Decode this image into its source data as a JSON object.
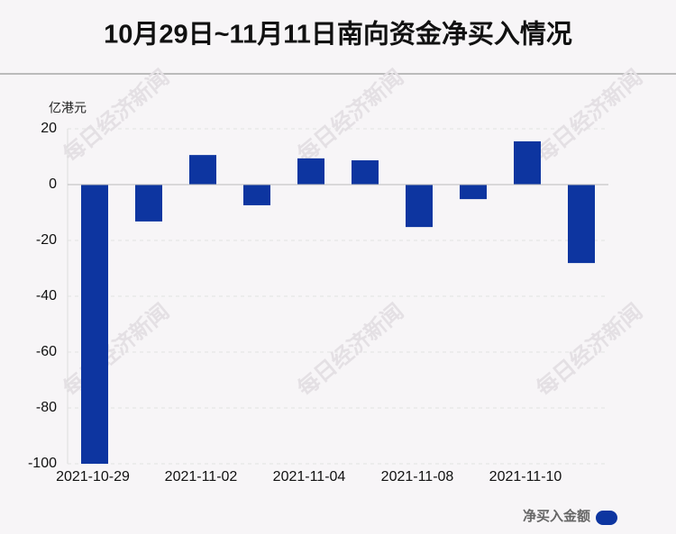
{
  "chart_data": {
    "type": "bar",
    "title": "10月29日~11月11日南向资金净买入情况",
    "y_unit": "亿港元",
    "watermark": "每日经济新闻",
    "categories": [
      "2021-10-29",
      null,
      "2021-11-02",
      null,
      "2021-11-04",
      null,
      "2021-11-08",
      null,
      "2021-11-10",
      null
    ],
    "series": [
      {
        "name": "净买入金额",
        "color": "#0d35a0",
        "values": [
          -100,
          -13.2,
          10.6,
          -7.4,
          9.4,
          8.7,
          -15.2,
          -5.2,
          15.5,
          -28.1
        ]
      }
    ],
    "ylim": [
      -100,
      20
    ],
    "yticks": [
      20,
      0,
      -20,
      -40,
      -60,
      -80,
      -100
    ],
    "grid": true,
    "legend": "bottom-right"
  }
}
